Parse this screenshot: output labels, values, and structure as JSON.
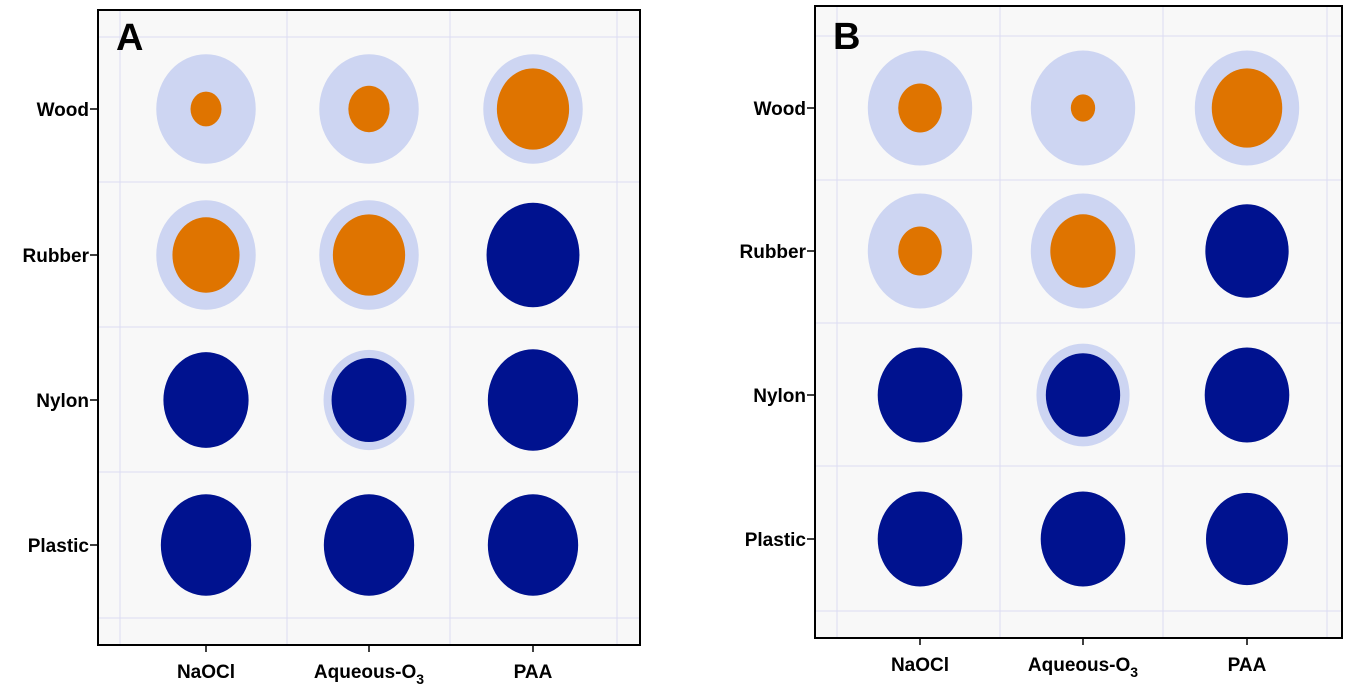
{
  "colors": {
    "outer_circle": "#cdd5f2",
    "inner_orange": "#df7400",
    "inner_navy": "#00128f",
    "plot_background": "#f8f8f8",
    "gridline": "#dcdcf2",
    "axis": "#000000"
  },
  "chart_data": [
    {
      "type": "bubble-grid",
      "panel_label": "A",
      "categories_x": [
        "NaOCl",
        "Aqueous-O3",
        "PAA"
      ],
      "categories_y": [
        "Wood",
        "Rubber",
        "Nylon",
        "Plastic"
      ],
      "grid": true,
      "cells": [
        {
          "x": "NaOCl",
          "y": "Wood",
          "outer": 0.7,
          "inner": 0.24,
          "inner_color": "orange"
        },
        {
          "x": "Aqueous-O3",
          "y": "Wood",
          "outer": 0.7,
          "inner": 0.32,
          "inner_color": "orange"
        },
        {
          "x": "PAA",
          "y": "Wood",
          "outer": 0.7,
          "inner": 0.56,
          "inner_color": "orange"
        },
        {
          "x": "NaOCl",
          "y": "Rubber",
          "outer": 0.7,
          "inner": 0.52,
          "inner_color": "orange"
        },
        {
          "x": "Aqueous-O3",
          "y": "Rubber",
          "outer": 0.7,
          "inner": 0.56,
          "inner_color": "orange"
        },
        {
          "x": "PAA",
          "y": "Rubber",
          "outer": null,
          "inner": 0.72,
          "inner_color": "navy"
        },
        {
          "x": "NaOCl",
          "y": "Nylon",
          "outer": null,
          "inner": 0.66,
          "inner_color": "navy"
        },
        {
          "x": "Aqueous-O3",
          "y": "Nylon",
          "outer": 0.64,
          "inner": 0.58,
          "inner_color": "navy"
        },
        {
          "x": "PAA",
          "y": "Nylon",
          "outer": null,
          "inner": 0.7,
          "inner_color": "navy"
        },
        {
          "x": "NaOCl",
          "y": "Plastic",
          "outer": null,
          "inner": 0.7,
          "inner_color": "navy"
        },
        {
          "x": "Aqueous-O3",
          "y": "Plastic",
          "outer": null,
          "inner": 0.7,
          "inner_color": "navy"
        },
        {
          "x": "PAA",
          "y": "Plastic",
          "outer": null,
          "inner": 0.7,
          "inner_color": "navy"
        }
      ]
    },
    {
      "type": "bubble-grid",
      "panel_label": "B",
      "categories_x": [
        "NaOCl",
        "Aqueous-O3",
        "PAA"
      ],
      "categories_y": [
        "Wood",
        "Rubber",
        "Nylon",
        "Plastic"
      ],
      "grid": true,
      "cells": [
        {
          "x": "NaOCl",
          "y": "Wood",
          "outer": 0.74,
          "inner": 0.34,
          "inner_color": "orange"
        },
        {
          "x": "Aqueous-O3",
          "y": "Wood",
          "outer": 0.74,
          "inner": 0.19,
          "inner_color": "orange"
        },
        {
          "x": "PAA",
          "y": "Wood",
          "outer": 0.74,
          "inner": 0.55,
          "inner_color": "orange"
        },
        {
          "x": "NaOCl",
          "y": "Rubber",
          "outer": 0.74,
          "inner": 0.34,
          "inner_color": "orange"
        },
        {
          "x": "Aqueous-O3",
          "y": "Rubber",
          "outer": 0.74,
          "inner": 0.51,
          "inner_color": "orange"
        },
        {
          "x": "PAA",
          "y": "Rubber",
          "outer": null,
          "inner": 0.65,
          "inner_color": "navy"
        },
        {
          "x": "NaOCl",
          "y": "Nylon",
          "outer": null,
          "inner": 0.66,
          "inner_color": "navy"
        },
        {
          "x": "Aqueous-O3",
          "y": "Nylon",
          "outer": 0.66,
          "inner": 0.58,
          "inner_color": "navy"
        },
        {
          "x": "PAA",
          "y": "Nylon",
          "outer": null,
          "inner": 0.66,
          "inner_color": "navy"
        },
        {
          "x": "NaOCl",
          "y": "Plastic",
          "outer": null,
          "inner": 0.66,
          "inner_color": "navy"
        },
        {
          "x": "Aqueous-O3",
          "y": "Plastic",
          "outer": null,
          "inner": 0.66,
          "inner_color": "navy"
        },
        {
          "x": "PAA",
          "y": "Plastic",
          "outer": null,
          "inner": 0.64,
          "inner_color": "navy"
        }
      ]
    }
  ]
}
